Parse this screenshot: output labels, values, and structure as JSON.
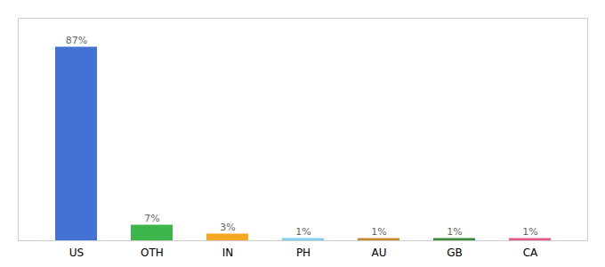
{
  "chart_data": {
    "type": "bar",
    "categories": [
      "US",
      "OTH",
      "IN",
      "PH",
      "AU",
      "GB",
      "CA"
    ],
    "values": [
      87,
      7,
      3,
      1,
      1,
      1,
      1
    ],
    "value_labels": [
      "87%",
      "7%",
      "3%",
      "1%",
      "1%",
      "1%",
      "1%"
    ],
    "colors": [
      "#4472d4",
      "#3cb54a",
      "#f5a623",
      "#7ecef4",
      "#c8882a",
      "#3a8a3a",
      "#e8588a"
    ],
    "ylim": [
      0,
      100
    ],
    "data_labels": true,
    "tick_labels": "x",
    "grid": false
  }
}
